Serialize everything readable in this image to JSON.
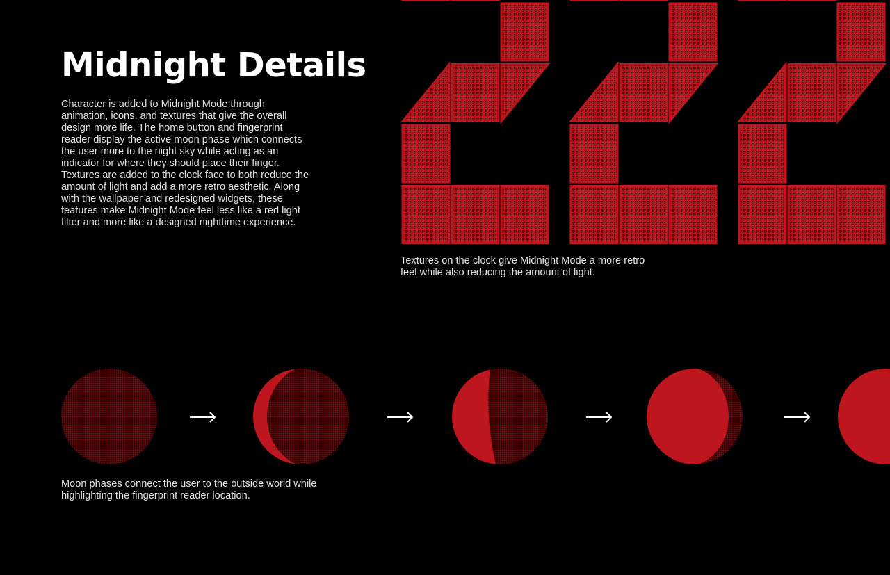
{
  "heading": "Midnight Details",
  "body_text": "Character is added to Midnight Mode through animation, icons, and textures that give the overall design more life. The home button and fingerprint reader display the active moon phase which connects the user more to the night sky while acting as an indicator for where they should place their finger. Textures are added to the clock face to both reduce the amount of light and add a more retro aesthetic. Along with the wallpaper and redesigned widgets, these features make Midnight Mode feel less like a red light filter and more like a designed nighttime experience.",
  "clock_caption": "Textures on the clock give Midnight Mode a more retro feel while also reducing the amount of light.",
  "moon_caption": "Moon phases connect the user to the outside world while highlighting the fingerprint reader location.",
  "colors": {
    "background": "#000000",
    "accent_red": "#be161e",
    "text": "#e0e0e0"
  },
  "clock_digits": [
    "2",
    "2",
    "2"
  ],
  "moon_phases": [
    "new",
    "waxing-crescent",
    "first-quarter",
    "waxing-gibbous",
    "full"
  ]
}
